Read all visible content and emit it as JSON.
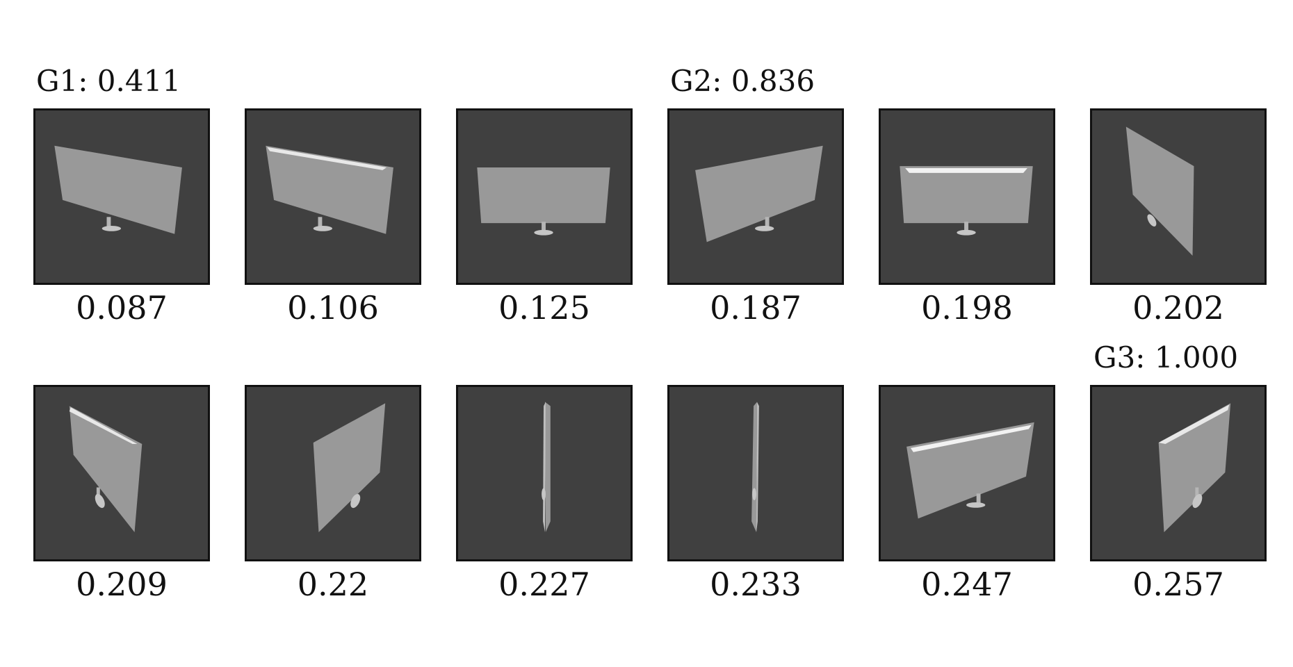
{
  "groups": [
    {
      "label": "G1:",
      "value": "0.411"
    },
    {
      "label": "G2:",
      "value": "0.836"
    },
    {
      "label": "G3:",
      "value": "1.000"
    }
  ],
  "rows": [
    {
      "tiles": [
        {
          "score": "0.087",
          "view": "tv-angled-left"
        },
        {
          "score": "0.106",
          "view": "tv-angled-left-top-edge"
        },
        {
          "score": "0.125",
          "view": "tv-front"
        },
        {
          "score": "0.187",
          "view": "tv-angled-right"
        },
        {
          "score": "0.198",
          "view": "tv-front-top-edge"
        },
        {
          "score": "0.202",
          "view": "tv-side-steep"
        }
      ]
    },
    {
      "tiles": [
        {
          "score": "0.209",
          "view": "tv-side-left-top-edge"
        },
        {
          "score": "0.22",
          "view": "tv-side-right"
        },
        {
          "score": "0.227",
          "view": "tv-edge-on"
        },
        {
          "score": "0.233",
          "view": "tv-edge-on"
        },
        {
          "score": "0.247",
          "view": "tv-angled-right-top-edge"
        },
        {
          "score": "0.257",
          "view": "tv-side-right-top-edge"
        }
      ]
    }
  ],
  "colors": {
    "tile_background": "#404040",
    "tv_panel": "#999999",
    "tv_highlight": "#e8e8e8",
    "tv_stand": "#b5b5b5"
  }
}
